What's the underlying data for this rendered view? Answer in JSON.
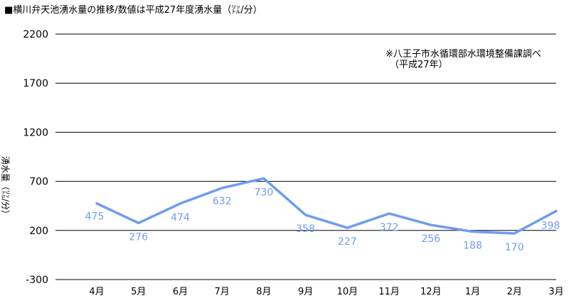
{
  "chart_data": {
    "type": "line",
    "title": "■横川弁天池湧水量の推移/数値は平成27年度湧水量（㍑/分）",
    "annotation": [
      "※八王子市水循環部水環境整備課調べ",
      "（平成27年）"
    ],
    "ylabel": "湧水量（㍑/分）",
    "xlabel": "",
    "categories": [
      "4月",
      "5月",
      "6月",
      "7月",
      "8月",
      "9月",
      "10月",
      "11月",
      "12月",
      "1月",
      "2月",
      "3月"
    ],
    "series": [
      {
        "name": "",
        "values": [
          475,
          276,
          474,
          632,
          730,
          358,
          227,
          372,
          256,
          188,
          170,
          398
        ],
        "color": "#6f9cf2"
      }
    ],
    "ylim": [
      -300,
      2200
    ],
    "yticks": [
      "2200",
      "1700",
      "1200",
      "700",
      "200",
      "-300"
    ],
    "grid": true,
    "legend": "none"
  }
}
